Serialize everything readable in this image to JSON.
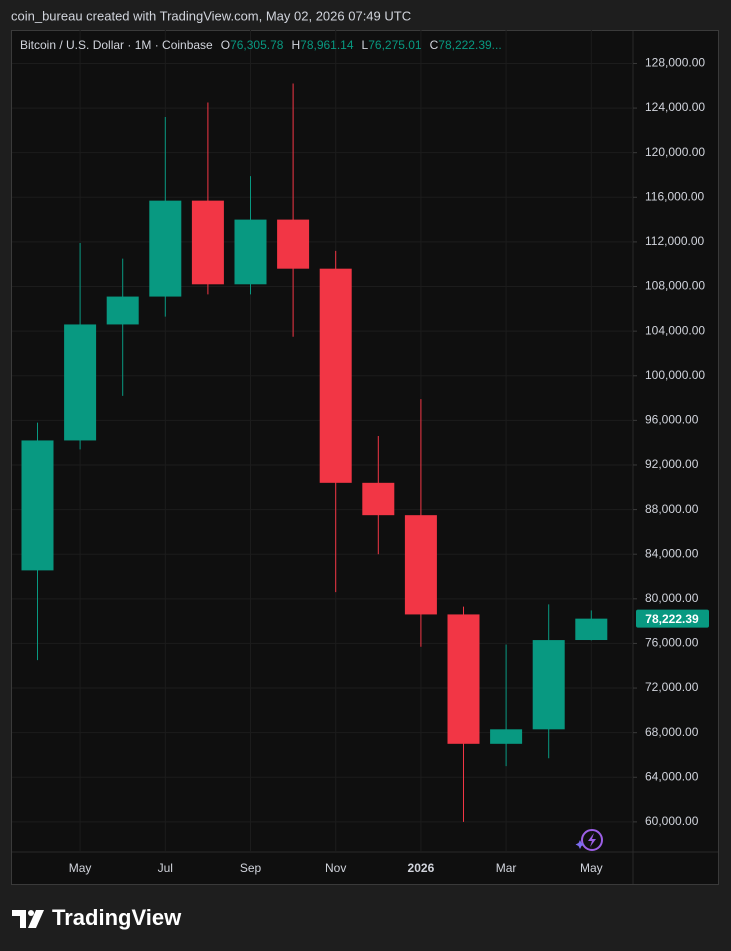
{
  "chart_data": {
    "type": "candlestick",
    "header": "coin_bureau created with TradingView.com, May 02, 2026 07:49 UTC",
    "title": "Bitcoin / U.S. Dollar · 1M · Coinbase",
    "ohlc_legend": [
      {
        "key": "O",
        "text": "76,305.78"
      },
      {
        "key": "H",
        "text": "78,961.14"
      },
      {
        "key": "L",
        "text": "76,275.01"
      },
      {
        "key": "C",
        "text": "78,222.39..."
      }
    ],
    "last_price_label": "78,222.39",
    "brand": "TradingView",
    "categories": [
      null,
      "May",
      null,
      "Jul",
      null,
      "Sep",
      null,
      "Nov",
      null,
      "2026",
      null,
      "Mar",
      null,
      "May"
    ],
    "series": [
      {
        "up_color": "#089981",
        "down_color": "#f23645",
        "open": [
          82550,
          94200,
          104600,
          107100,
          115700,
          108200,
          114000,
          109600,
          90400,
          87500,
          78600,
          67000,
          68300,
          76305.78
        ],
        "high": [
          95800,
          111900,
          110500,
          123200,
          124500,
          117900,
          126200,
          111200,
          94600,
          97900,
          79300,
          75900,
          79500,
          78961.14
        ],
        "low": [
          74500,
          93400,
          98200,
          105300,
          107300,
          107300,
          103500,
          80600,
          84000,
          75700,
          60000,
          65000,
          65700,
          76275.01
        ],
        "close": [
          94200,
          104600,
          107100,
          115700,
          108200,
          114000,
          109600,
          90400,
          87500,
          78600,
          67000,
          68300,
          76300,
          78222.39
        ]
      }
    ],
    "ylim": [
      57300,
      131000
    ],
    "yticks": [
      {
        "value": 60000,
        "label": "60,000.00"
      },
      {
        "value": 64000,
        "label": "64,000.00"
      },
      {
        "value": 68000,
        "label": "68,000.00"
      },
      {
        "value": 72000,
        "label": "72,000.00"
      },
      {
        "value": 76000,
        "label": "76,000.00"
      },
      {
        "value": 80000,
        "label": "80,000.00"
      },
      {
        "value": 84000,
        "label": "84,000.00"
      },
      {
        "value": 88000,
        "label": "88,000.00"
      },
      {
        "value": 92000,
        "label": "92,000.00"
      },
      {
        "value": 96000,
        "label": "96,000.00"
      },
      {
        "value": 100000,
        "label": "100,000.00"
      },
      {
        "value": 104000,
        "label": "104,000.00"
      },
      {
        "value": 108000,
        "label": "108,000.00"
      },
      {
        "value": 112000,
        "label": "112,000.00"
      },
      {
        "value": 116000,
        "label": "116,000.00"
      },
      {
        "value": 120000,
        "label": "120,000.00"
      },
      {
        "value": 124000,
        "label": "124,000.00"
      },
      {
        "value": 128000,
        "label": "128,000.00"
      }
    ],
    "grid": true
  }
}
